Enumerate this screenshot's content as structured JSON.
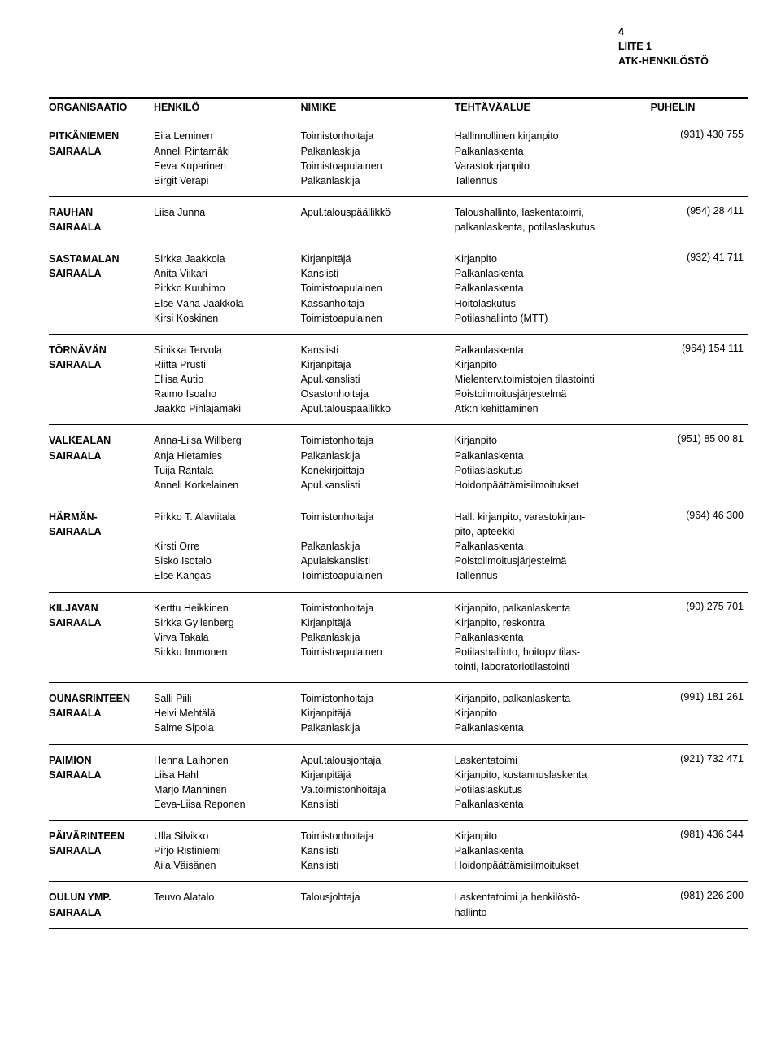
{
  "header": {
    "page_no": "4",
    "appendix": "LIITE 1",
    "title": "ATK-HENKILÖSTÖ"
  },
  "columns": {
    "org": "ORGANISAATIO",
    "person": "HENKILÖ",
    "title": "NIMIKE",
    "area": "TEHTÄVÄALUE",
    "phone": "PUHELIN"
  },
  "rows": [
    {
      "org": [
        "PITKÄNIEMEN",
        "SAIRAALA"
      ],
      "persons": [
        "Eila Leminen",
        "Anneli Rintamäki",
        "Eeva Kuparinen",
        "Birgit Verapi"
      ],
      "titles": [
        "Toimistonhoitaja",
        "Palkanlaskija",
        "Toimistoapulainen",
        "Palkanlaskija"
      ],
      "areas": [
        "Hallinnollinen kirjanpito",
        "Palkanlaskenta",
        "Varastokirjanpito",
        "Tallennus"
      ],
      "phone": "(931) 430 755"
    },
    {
      "org": [
        "RAUHAN",
        "SAIRAALA"
      ],
      "persons": [
        "Liisa Junna"
      ],
      "titles": [
        "Apul.talouspäällikkö"
      ],
      "areas": [
        "Taloushallinto, laskentatoimi, palkanlaskenta, potilaslaskutus"
      ],
      "phone": "(954) 28 411"
    },
    {
      "org": [
        "SASTAMALAN",
        "SAIRAALA"
      ],
      "persons": [
        "Sirkka Jaakkola",
        "Anita Viikari",
        "Pirkko Kuuhimo",
        "Else Vähä-Jaakkola",
        "Kirsi Koskinen"
      ],
      "titles": [
        "Kirjanpitäjä",
        "Kanslisti",
        "Toimistoapulainen",
        "Kassanhoitaja",
        "Toimistoapulainen"
      ],
      "areas": [
        "Kirjanpito",
        "Palkanlaskenta",
        "Palkanlaskenta",
        "Hoitolaskutus",
        "Potilashallinto (MTT)"
      ],
      "phone": "(932) 41 711"
    },
    {
      "org": [
        "TÖRNÄVÄN",
        "SAIRAALA"
      ],
      "persons": [
        "Sinikka Tervola",
        "Riitta Prusti",
        "Eliisa Autio",
        "Raimo Isoaho",
        "Jaakko Pihlajamäki"
      ],
      "titles": [
        "Kanslisti",
        "Kirjanpitäjä",
        "Apul.kanslisti",
        "Osastonhoitaja",
        "Apul.talouspäällikkö"
      ],
      "areas": [
        "Palkanlaskenta",
        "Kirjanpito",
        "Mielenterv.toimistojen tilastointi",
        "Poistoilmoitusjärjestelmä",
        "Atk:n kehittäminen"
      ],
      "phone": "(964) 154 111"
    },
    {
      "org": [
        "VALKEALAN",
        "SAIRAALA"
      ],
      "persons": [
        "Anna-Liisa Willberg",
        "Anja Hietamies",
        "Tuija Rantala",
        "Anneli Korkelainen"
      ],
      "titles": [
        "Toimistonhoitaja",
        "Palkanlaskija",
        "Konekirjoittaja",
        "Apul.kanslisti"
      ],
      "areas": [
        "Kirjanpito",
        "Palkanlaskenta",
        "Potilaslaskutus",
        "Hoidonpäättämisilmoitukset"
      ],
      "phone": "(951) 85 00 81"
    },
    {
      "org": [
        "HÄRMÄN-",
        "SAIRAALA"
      ],
      "persons": [
        "Pirkko T. Alaviitala",
        "",
        "Kirsti Orre",
        "Sisko Isotalo",
        "Else Kangas"
      ],
      "titles": [
        "Toimistonhoitaja",
        "",
        "Palkanlaskija",
        "Apulaiskanslisti",
        "Toimistoapulainen"
      ],
      "areas": [
        "Hall. kirjanpito, varastokirjan-",
        "pito, apteekki",
        "Palkanlaskenta",
        "Poistoilmoitusjärjestelmä",
        "Tallennus"
      ],
      "phone": "(964) 46 300"
    },
    {
      "org": [
        "KILJAVAN",
        "SAIRAALA"
      ],
      "persons": [
        "Kerttu Heikkinen",
        "Sirkka Gyllenberg",
        "Virva Takala",
        "Sirkku Immonen"
      ],
      "titles": [
        "Toimistonhoitaja",
        "Kirjanpitäjä",
        "Palkanlaskija",
        "Toimistoapulainen"
      ],
      "areas": [
        "Kirjanpito, palkanlaskenta",
        "Kirjanpito, reskontra",
        "Palkanlaskenta",
        "Potilashallinto, hoitopv tilas-",
        "tointi, laboratoriotilastointi"
      ],
      "phone": "(90) 275 701"
    },
    {
      "org": [
        "OUNASRINTEEN",
        "SAIRAALA"
      ],
      "persons": [
        "Salli Piili",
        "Helvi Mehtälä",
        "Salme Sipola"
      ],
      "titles": [
        "Toimistonhoitaja",
        "Kirjanpitäjä",
        "Palkanlaskija"
      ],
      "areas": [
        "Kirjanpito, palkanlaskenta",
        "Kirjanpito",
        "Palkanlaskenta"
      ],
      "phone": "(991) 181 261"
    },
    {
      "org": [
        "PAIMION",
        "SAIRAALA"
      ],
      "persons": [
        "Henna Laihonen",
        "Liisa Hahl",
        "Marjo Manninen",
        "Eeva-Liisa Reponen"
      ],
      "titles": [
        "Apul.talousjohtaja",
        "Kirjanpitäjä",
        "Va.toimistonhoitaja",
        "Kanslisti"
      ],
      "areas": [
        "Laskentatoimi",
        "Kirjanpito, kustannuslaskenta",
        "Potilaslaskutus",
        "Palkanlaskenta"
      ],
      "phone": "(921) 732 471"
    },
    {
      "org": [
        "PÄIVÄRINTEEN",
        "SAIRAALA"
      ],
      "persons": [
        "Ulla Silvikko",
        "Pirjo Ristiniemi",
        "Aila Väisänen"
      ],
      "titles": [
        "Toimistonhoitaja",
        "Kanslisti",
        "Kanslisti"
      ],
      "areas": [
        "Kirjanpito",
        "Palkanlaskenta",
        "Hoidonpäättämisilmoitukset"
      ],
      "phone": "(981) 436 344"
    },
    {
      "org": [
        "OULUN YMP.",
        "SAIRAALA"
      ],
      "persons": [
        "Teuvo Alatalo"
      ],
      "titles": [
        "Talousjohtaja"
      ],
      "areas": [
        "Laskentatoimi ja henkilöstö-",
        "hallinto"
      ],
      "phone": "(981) 226 200"
    }
  ]
}
